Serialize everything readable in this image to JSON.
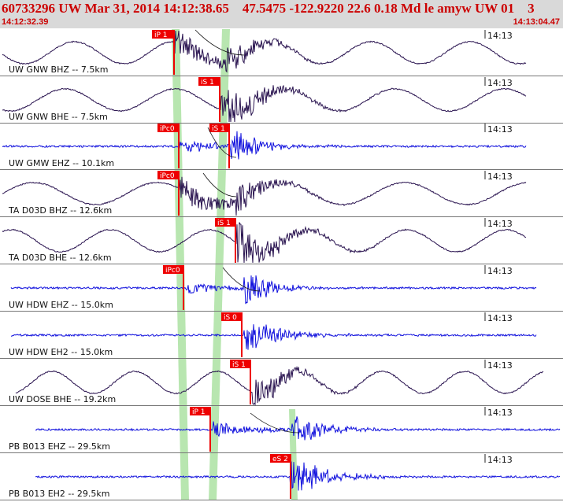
{
  "header": {
    "title": "60733296 UW Mar 31, 2014 14:12:38.65    47.5475 -122.9220 22.6 0.18 Md le amyw UW 01    3",
    "start_time": "14:12:32.39",
    "end_time": "14:13:04.47"
  },
  "colors": {
    "header_bg": "#d9d9d9",
    "header_text": "#cc0000",
    "broadband_trace": "#2a1450",
    "short_period_trace": "#1010dd",
    "pick_marker": "#ee0000",
    "window_band": "#b8e6b0"
  },
  "traces": [
    {
      "station": "UW GNW BHZ -- 7.5km",
      "time_mark": "14:13",
      "pick": "iP 1",
      "kind": "broadband"
    },
    {
      "station": "UW GNW BHE -- 7.5km",
      "time_mark": "14:13",
      "pick": "iS 1",
      "kind": "broadband"
    },
    {
      "station": "UW GMW EHZ -- 10.1km",
      "time_mark": "14:13",
      "pick": "iPc0",
      "pick2": "iS 1",
      "kind": "short_period"
    },
    {
      "station": "TA D03D BHZ -- 12.6km",
      "time_mark": "14:13",
      "pick": "iPc0",
      "kind": "broadband"
    },
    {
      "station": "TA D03D BHE -- 12.6km",
      "time_mark": "14:13",
      "pick": "iS 1",
      "kind": "broadband"
    },
    {
      "station": "UW HDW EHZ -- 15.0km",
      "time_mark": "14:13",
      "pick": "iPc0",
      "kind": "short_period"
    },
    {
      "station": "UW HDW EH2 -- 15.0km",
      "time_mark": "14:13",
      "pick": "iS 0",
      "kind": "short_period"
    },
    {
      "station": "UW DOSE BHE -- 19.2km",
      "time_mark": "14:13",
      "pick": "iS 1",
      "kind": "broadband"
    },
    {
      "station": "PB B013 EHZ -- 29.5km",
      "time_mark": "14:13",
      "pick": "iP 1",
      "kind": "short_period"
    },
    {
      "station": "PB B013 EH2 -- 29.5km",
      "time_mark": "14:13",
      "pick": "eS 2",
      "kind": "short_period"
    }
  ]
}
